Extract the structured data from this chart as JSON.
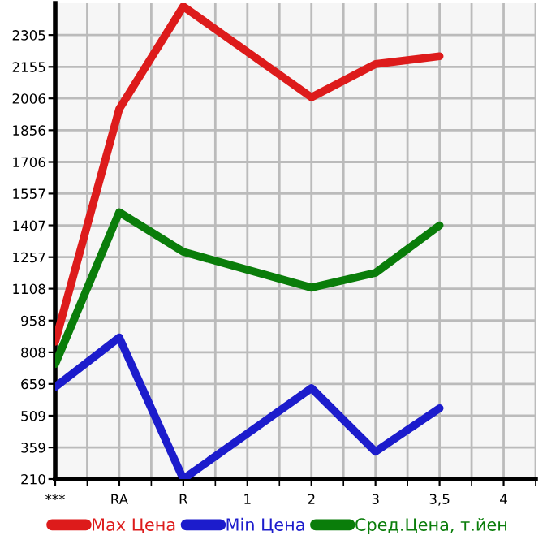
{
  "chart_data": {
    "type": "line",
    "categories": [
      "***",
      "RA",
      "R",
      "1",
      "2",
      "3",
      "3,5",
      "4"
    ],
    "series": [
      {
        "name": "Max Цена",
        "color": "#dd1b1b",
        "values": [
          858,
          1956,
          2440,
          null,
          2011,
          2168,
          2205,
          null
        ]
      },
      {
        "name": "Min Цена",
        "color": "#1c1ccc",
        "values": [
          644,
          878,
          210,
          null,
          639,
          339,
          544,
          null
        ]
      },
      {
        "name": "Сред.Цена, т.йен",
        "color": "#0a7d0a",
        "values": [
          753,
          1469,
          1282,
          null,
          1113,
          1183,
          1407,
          null
        ]
      }
    ],
    "ylim": [
      210,
      2455
    ],
    "yticks": [
      210,
      359,
      509,
      659,
      808,
      958,
      1108,
      1257,
      1407,
      1557,
      1706,
      1856,
      2006,
      2155,
      2305
    ],
    "grid": true,
    "legend": "bottom",
    "marker": "none",
    "line_style": "solid"
  }
}
